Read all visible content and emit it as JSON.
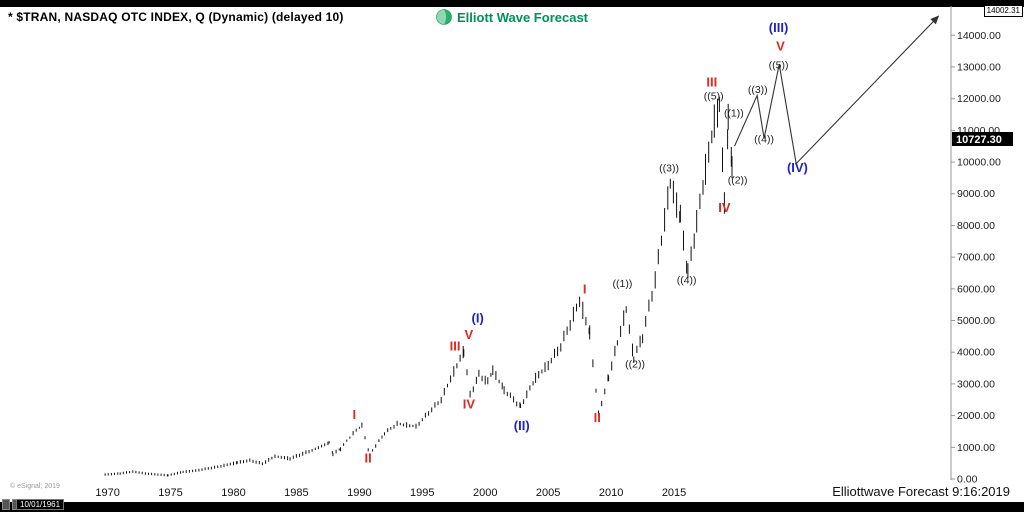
{
  "header": {
    "symbol_title": "* $TRAN, NASDAQ OTC INDEX, Q (Dynamic) (delayed 10)",
    "logo_text": "Elliott Wave Forecast"
  },
  "price_scale": {
    "high_label": "14002.31",
    "current_price": "10727.30"
  },
  "footer": {
    "copyright": "© eSignal, 2019",
    "date_box": "10/01/1961",
    "credit": "Elliottwave Forecast 9:16:2019"
  },
  "chart_data": {
    "type": "bar",
    "title": "$TRAN NASDAQ OTC Index, quarterly bars with Elliott Wave count and projection",
    "xlabel": "",
    "ylabel": "",
    "x_min": 1969,
    "x_max": 2037,
    "y_min": 0,
    "y_max": 14860,
    "x_ticks": [
      1970,
      1975,
      1980,
      1985,
      1990,
      1995,
      2000,
      2005,
      2010,
      2015
    ],
    "y_ticks": [
      0,
      1000,
      2000,
      3000,
      4000,
      5000,
      6000,
      7000,
      8000,
      9000,
      10000,
      11000,
      12000,
      13000,
      14000
    ],
    "current_price_value": 10727.3,
    "price_anchors": [
      [
        1969.8,
        140
      ],
      [
        1971,
        175
      ],
      [
        1972,
        235
      ],
      [
        1973,
        175
      ],
      [
        1974.8,
        115
      ],
      [
        1976,
        225
      ],
      [
        1977,
        265
      ],
      [
        1978,
        335
      ],
      [
        1979,
        405
      ],
      [
        1980.3,
        520
      ],
      [
        1981.3,
        590
      ],
      [
        1982.3,
        485
      ],
      [
        1983.3,
        720
      ],
      [
        1984.5,
        645
      ],
      [
        1985.5,
        800
      ],
      [
        1986.5,
        950
      ],
      [
        1987.6,
        1150
      ],
      [
        1987.9,
        790
      ],
      [
        1988.5,
        960
      ],
      [
        1989.5,
        1450
      ],
      [
        1990.2,
        1700
      ],
      [
        1990.8,
        770
      ],
      [
        1992,
        1450
      ],
      [
        1993,
        1750
      ],
      [
        1994.5,
        1660
      ],
      [
        1995.5,
        2100
      ],
      [
        1996.5,
        2520
      ],
      [
        1997.5,
        3400
      ],
      [
        1998.3,
        4050
      ],
      [
        1998.8,
        2660
      ],
      [
        1999.5,
        3300
      ],
      [
        2000.2,
        3080
      ],
      [
        2000.6,
        3450
      ],
      [
        2001.5,
        2820
      ],
      [
        2002.8,
        2300
      ],
      [
        2004,
        3200
      ],
      [
        2005,
        3620
      ],
      [
        2006,
        4220
      ],
      [
        2007.5,
        5650
      ],
      [
        2008.3,
        4620
      ],
      [
        2009,
        2060
      ],
      [
        2009.8,
        3220
      ],
      [
        2010.5,
        4320
      ],
      [
        2011.2,
        5380
      ],
      [
        2011.8,
        3820
      ],
      [
        2012.5,
        4520
      ],
      [
        2013.5,
        6320
      ],
      [
        2014.7,
        9380
      ],
      [
        2015.5,
        8300
      ],
      [
        2016.1,
        6520
      ],
      [
        2016.8,
        8120
      ],
      [
        2017.5,
        9800
      ],
      [
        2018.2,
        11280
      ],
      [
        2018.6,
        11900
      ],
      [
        2019,
        8820
      ],
      [
        2019.3,
        11280
      ],
      [
        2019.6,
        10020
      ],
      [
        2019.75,
        10727
      ]
    ],
    "projection": [
      [
        2019.8,
        10500
      ],
      [
        2021.6,
        12100
      ],
      [
        2022.15,
        10750
      ],
      [
        2023.35,
        13080
      ],
      [
        2024.7,
        9950
      ],
      [
        2036.0,
        14600
      ]
    ],
    "annotations": [
      {
        "text": "I",
        "color": "red",
        "year": 1989.6,
        "value": 1900
      },
      {
        "text": "II",
        "color": "red",
        "year": 1990.7,
        "value": 520
      },
      {
        "text": "III",
        "color": "red",
        "year": 1997.6,
        "value": 4050
      },
      {
        "text": "V",
        "color": "red",
        "year": 1998.7,
        "value": 4420
      },
      {
        "text": "IV",
        "color": "red",
        "year": 1998.7,
        "value": 2230
      },
      {
        "text": "(I)",
        "color": "blue",
        "year": 1999.4,
        "value": 4930
      },
      {
        "text": "(II)",
        "color": "blue",
        "year": 2002.9,
        "value": 1540
      },
      {
        "text": "I",
        "color": "red",
        "year": 2007.9,
        "value": 5850
      },
      {
        "text": "II",
        "color": "red",
        "year": 2008.9,
        "value": 1800
      },
      {
        "text": "((1))",
        "color": "black",
        "year": 2010.9,
        "value": 6060
      },
      {
        "text": "((2))",
        "color": "black",
        "year": 2011.9,
        "value": 3520
      },
      {
        "text": "((3))",
        "color": "black",
        "year": 2014.6,
        "value": 9700
      },
      {
        "text": "((4))",
        "color": "black",
        "year": 2016.0,
        "value": 6170
      },
      {
        "text": "((5))",
        "color": "black",
        "year": 2018.15,
        "value": 11980
      },
      {
        "text": "III",
        "color": "red",
        "year": 2018.0,
        "value": 12380
      },
      {
        "text": "IV",
        "color": "red",
        "year": 2019.0,
        "value": 8420
      },
      {
        "text": "((1))",
        "color": "black",
        "year": 2019.75,
        "value": 11430
      },
      {
        "text": "((2))",
        "color": "black",
        "year": 2020.05,
        "value": 9320
      },
      {
        "text": "((3))",
        "color": "black",
        "year": 2021.65,
        "value": 12180
      },
      {
        "text": "((4))",
        "color": "black",
        "year": 2022.15,
        "value": 10620
      },
      {
        "text": "((5))",
        "color": "black",
        "year": 2023.3,
        "value": 12950
      },
      {
        "text": "V",
        "color": "red",
        "year": 2023.45,
        "value": 13520
      },
      {
        "text": "(III)",
        "color": "blue",
        "year": 2023.3,
        "value": 14100
      },
      {
        "text": "(IV)",
        "color": "blue",
        "year": 2024.8,
        "value": 9680
      }
    ],
    "colors": {
      "red": "#e02820",
      "blue": "#2020cc",
      "black": "#222222",
      "bars": "#111111",
      "projection": "#333333",
      "logo_green": "#00915a"
    },
    "legend": "none",
    "grid": false
  }
}
